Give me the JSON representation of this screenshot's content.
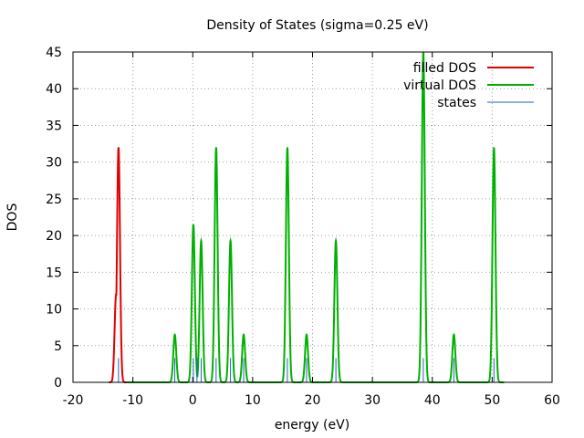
{
  "chart_data": {
    "type": "line",
    "title": "Density of States (sigma=0.25 eV)",
    "xlabel": "energy (eV)",
    "ylabel": "DOS",
    "xlim": [
      -20,
      60
    ],
    "ylim": [
      0,
      45
    ],
    "x_ticks": [
      -20,
      -10,
      0,
      10,
      20,
      30,
      40,
      50,
      60
    ],
    "y_ticks": [
      0,
      5,
      10,
      15,
      20,
      25,
      30,
      35,
      40,
      45
    ],
    "grid": true,
    "legend_position": "top-right",
    "sigma": 0.25,
    "series": [
      {
        "name": "filled DOS",
        "color": "#e00000",
        "style": "line",
        "baseline_range": [
          -14,
          -11
        ],
        "peaks": [
          {
            "x": -12.4,
            "y": 32.0
          },
          {
            "x": -12.8,
            "y": 12.0
          }
        ]
      },
      {
        "name": "virtual DOS",
        "color": "#00b000",
        "style": "line",
        "baseline_range": [
          -11,
          52
        ],
        "peaks": [
          {
            "x": -3.0,
            "y": 6.5
          },
          {
            "x": 0.1,
            "y": 21.5
          },
          {
            "x": 1.4,
            "y": 19.3
          },
          {
            "x": 3.9,
            "y": 32.0
          },
          {
            "x": 6.3,
            "y": 19.3
          },
          {
            "x": 8.5,
            "y": 6.5
          },
          {
            "x": 15.8,
            "y": 32.0
          },
          {
            "x": 19.0,
            "y": 6.5
          },
          {
            "x": 23.9,
            "y": 19.3
          },
          {
            "x": 38.5,
            "y": 45.0
          },
          {
            "x": 43.6,
            "y": 6.5
          },
          {
            "x": 50.3,
            "y": 32.0
          }
        ]
      },
      {
        "name": "states",
        "color": "#2060c0",
        "style": "impulses",
        "points": [
          {
            "x": -12.4,
            "y": 3.3
          },
          {
            "x": -3.0,
            "y": 3.3
          },
          {
            "x": 0.1,
            "y": 3.3
          },
          {
            "x": 0.7,
            "y": 3.3
          },
          {
            "x": 1.4,
            "y": 3.3
          },
          {
            "x": 3.9,
            "y": 3.3
          },
          {
            "x": 6.3,
            "y": 3.3
          },
          {
            "x": 8.5,
            "y": 3.3
          },
          {
            "x": 15.8,
            "y": 3.3
          },
          {
            "x": 19.0,
            "y": 3.3
          },
          {
            "x": 23.9,
            "y": 3.3
          },
          {
            "x": 38.5,
            "y": 3.3
          },
          {
            "x": 43.6,
            "y": 3.3
          },
          {
            "x": 50.3,
            "y": 3.3
          }
        ]
      }
    ]
  }
}
